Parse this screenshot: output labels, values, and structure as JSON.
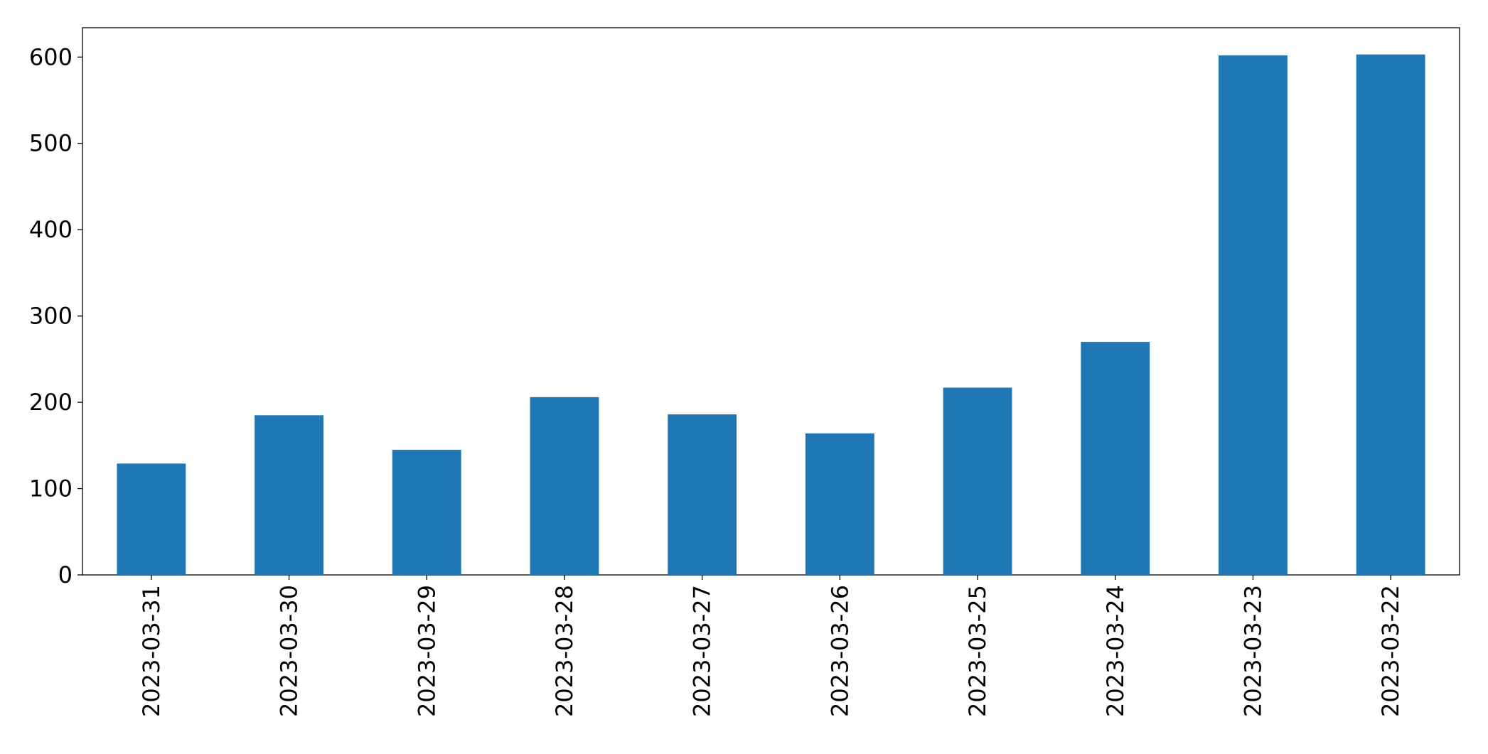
{
  "chart_data": {
    "type": "bar",
    "categories": [
      "2023-03-31",
      "2023-03-30",
      "2023-03-29",
      "2023-03-28",
      "2023-03-27",
      "2023-03-26",
      "2023-03-25",
      "2023-03-24",
      "2023-03-23",
      "2023-03-22"
    ],
    "values": [
      129,
      185,
      145,
      206,
      186,
      164,
      217,
      270,
      602,
      603
    ],
    "color": "#1f77b4",
    "ylim": [
      0,
      634
    ],
    "yticks": [
      0,
      100,
      200,
      300,
      400,
      500,
      600
    ],
    "grid": false
  }
}
